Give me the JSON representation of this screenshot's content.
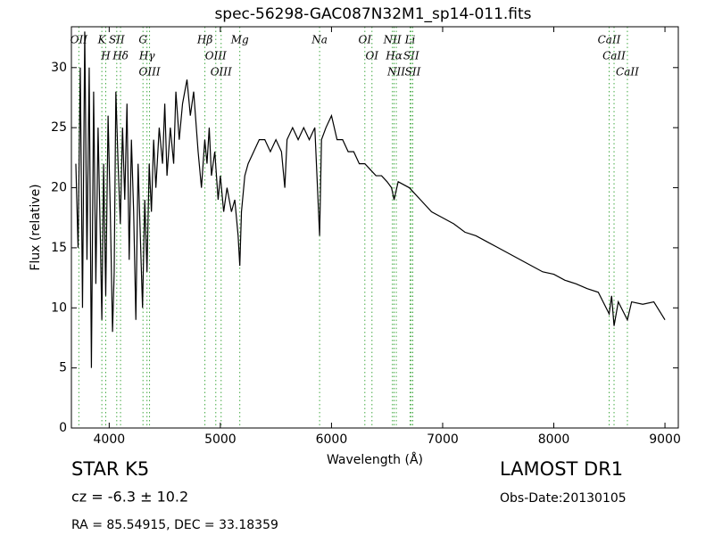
{
  "chart_data": {
    "type": "line",
    "title": "spec-56298-GAC087N32M1_sp14-011.fits",
    "xlabel": "Wavelength (Å)",
    "ylabel": "Flux (relative)",
    "xlim": [
      3660,
      9120
    ],
    "ylim": [
      0,
      33.4
    ],
    "xticks": [
      4000,
      5000,
      6000,
      7000,
      8000,
      9000
    ],
    "yticks": [
      0,
      5,
      10,
      15,
      20,
      25,
      30
    ],
    "color": "#000000",
    "line_color": "#44aa44",
    "x": [
      3700,
      3720,
      3740,
      3760,
      3780,
      3800,
      3820,
      3840,
      3860,
      3880,
      3900,
      3920,
      3934,
      3950,
      3969,
      3990,
      4010,
      4030,
      4045,
      4060,
      4080,
      4100,
      4120,
      4140,
      4160,
      4180,
      4200,
      4220,
      4240,
      4260,
      4280,
      4300,
      4320,
      4340,
      4360,
      4380,
      4400,
      4420,
      4450,
      4480,
      4500,
      4520,
      4550,
      4580,
      4600,
      4630,
      4660,
      4700,
      4730,
      4760,
      4800,
      4830,
      4860,
      4880,
      4900,
      4920,
      4950,
      4980,
      5000,
      5030,
      5060,
      5100,
      5130,
      5160,
      5175,
      5190,
      5220,
      5250,
      5300,
      5350,
      5400,
      5450,
      5500,
      5550,
      5580,
      5600,
      5650,
      5700,
      5750,
      5800,
      5850,
      5893,
      5910,
      5950,
      6000,
      6050,
      6100,
      6150,
      6200,
      6250,
      6300,
      6350,
      6400,
      6450,
      6500,
      6540,
      6563,
      6600,
      6700,
      6800,
      6900,
      7000,
      7100,
      7200,
      7300,
      7400,
      7500,
      7600,
      7700,
      7800,
      7900,
      8000,
      8100,
      8200,
      8300,
      8400,
      8498,
      8520,
      8542,
      8580,
      8662,
      8700,
      8800,
      8900,
      9000
    ],
    "values": [
      22,
      15,
      30,
      10,
      33,
      14,
      30,
      5,
      28,
      12,
      25,
      16,
      9,
      22,
      11,
      26,
      18,
      8,
      13,
      28,
      22,
      17,
      25,
      19,
      27,
      14,
      24,
      18,
      9,
      22,
      16,
      10,
      19,
      13,
      22,
      18,
      24,
      20,
      25,
      22,
      27,
      21,
      25,
      22,
      28,
      24,
      27,
      29,
      26,
      28,
      23,
      20,
      24,
      22,
      25,
      21,
      23,
      19,
      21,
      18,
      20,
      18,
      19,
      16,
      13.5,
      18,
      21,
      22,
      23,
      24,
      24,
      23,
      24,
      23,
      20,
      24,
      25,
      24,
      25,
      24,
      25,
      16,
      24,
      25,
      26,
      24,
      24,
      23,
      23,
      22,
      22,
      21.5,
      21,
      21,
      20.5,
      20,
      19,
      20.5,
      20,
      19,
      18,
      17.5,
      17,
      16.3,
      16,
      15.5,
      15,
      14.5,
      14,
      13.5,
      13,
      12.8,
      12.3,
      12,
      11.6,
      11.3,
      9.5,
      11,
      8.5,
      10.5,
      9,
      10.5,
      10.3,
      10.5,
      9
    ],
    "annotations": [
      {
        "wavelength": 3727,
        "label": "OII"
      },
      {
        "wavelength": 3934,
        "label": "K"
      },
      {
        "wavelength": 3969,
        "label": "H"
      },
      {
        "wavelength": 4068,
        "label": "SII"
      },
      {
        "wavelength": 4102,
        "label": "Hδ"
      },
      {
        "wavelength": 4304,
        "label": "G"
      },
      {
        "wavelength": 4340,
        "label": "Hγ"
      },
      {
        "wavelength": 4363,
        "label": "OIII"
      },
      {
        "wavelength": 4861,
        "label": "Hβ"
      },
      {
        "wavelength": 4959,
        "label": "OIII"
      },
      {
        "wavelength": 5007,
        "label": "OIII"
      },
      {
        "wavelength": 5175,
        "label": "Mg"
      },
      {
        "wavelength": 5893,
        "label": "Na"
      },
      {
        "wavelength": 6300,
        "label": "OI"
      },
      {
        "wavelength": 6364,
        "label": "OI"
      },
      {
        "wavelength": 6548,
        "label": "NII"
      },
      {
        "wavelength": 6563,
        "label": "Hα"
      },
      {
        "wavelength": 6583,
        "label": "NII"
      },
      {
        "wavelength": 6707,
        "label": "Li"
      },
      {
        "wavelength": 6717,
        "label": "SII"
      },
      {
        "wavelength": 6731,
        "label": "SII"
      },
      {
        "wavelength": 8498,
        "label": "CaII"
      },
      {
        "wavelength": 8542,
        "label": "CaII"
      },
      {
        "wavelength": 8662,
        "label": "CaII"
      }
    ]
  },
  "info": {
    "class": "STAR   K5",
    "cz": "cz = -6.3 ± 10.2",
    "coords": "RA = 85.54915, DEC = 33.18359",
    "survey": "LAMOST DR1",
    "date": "Obs-Date:20130105"
  }
}
